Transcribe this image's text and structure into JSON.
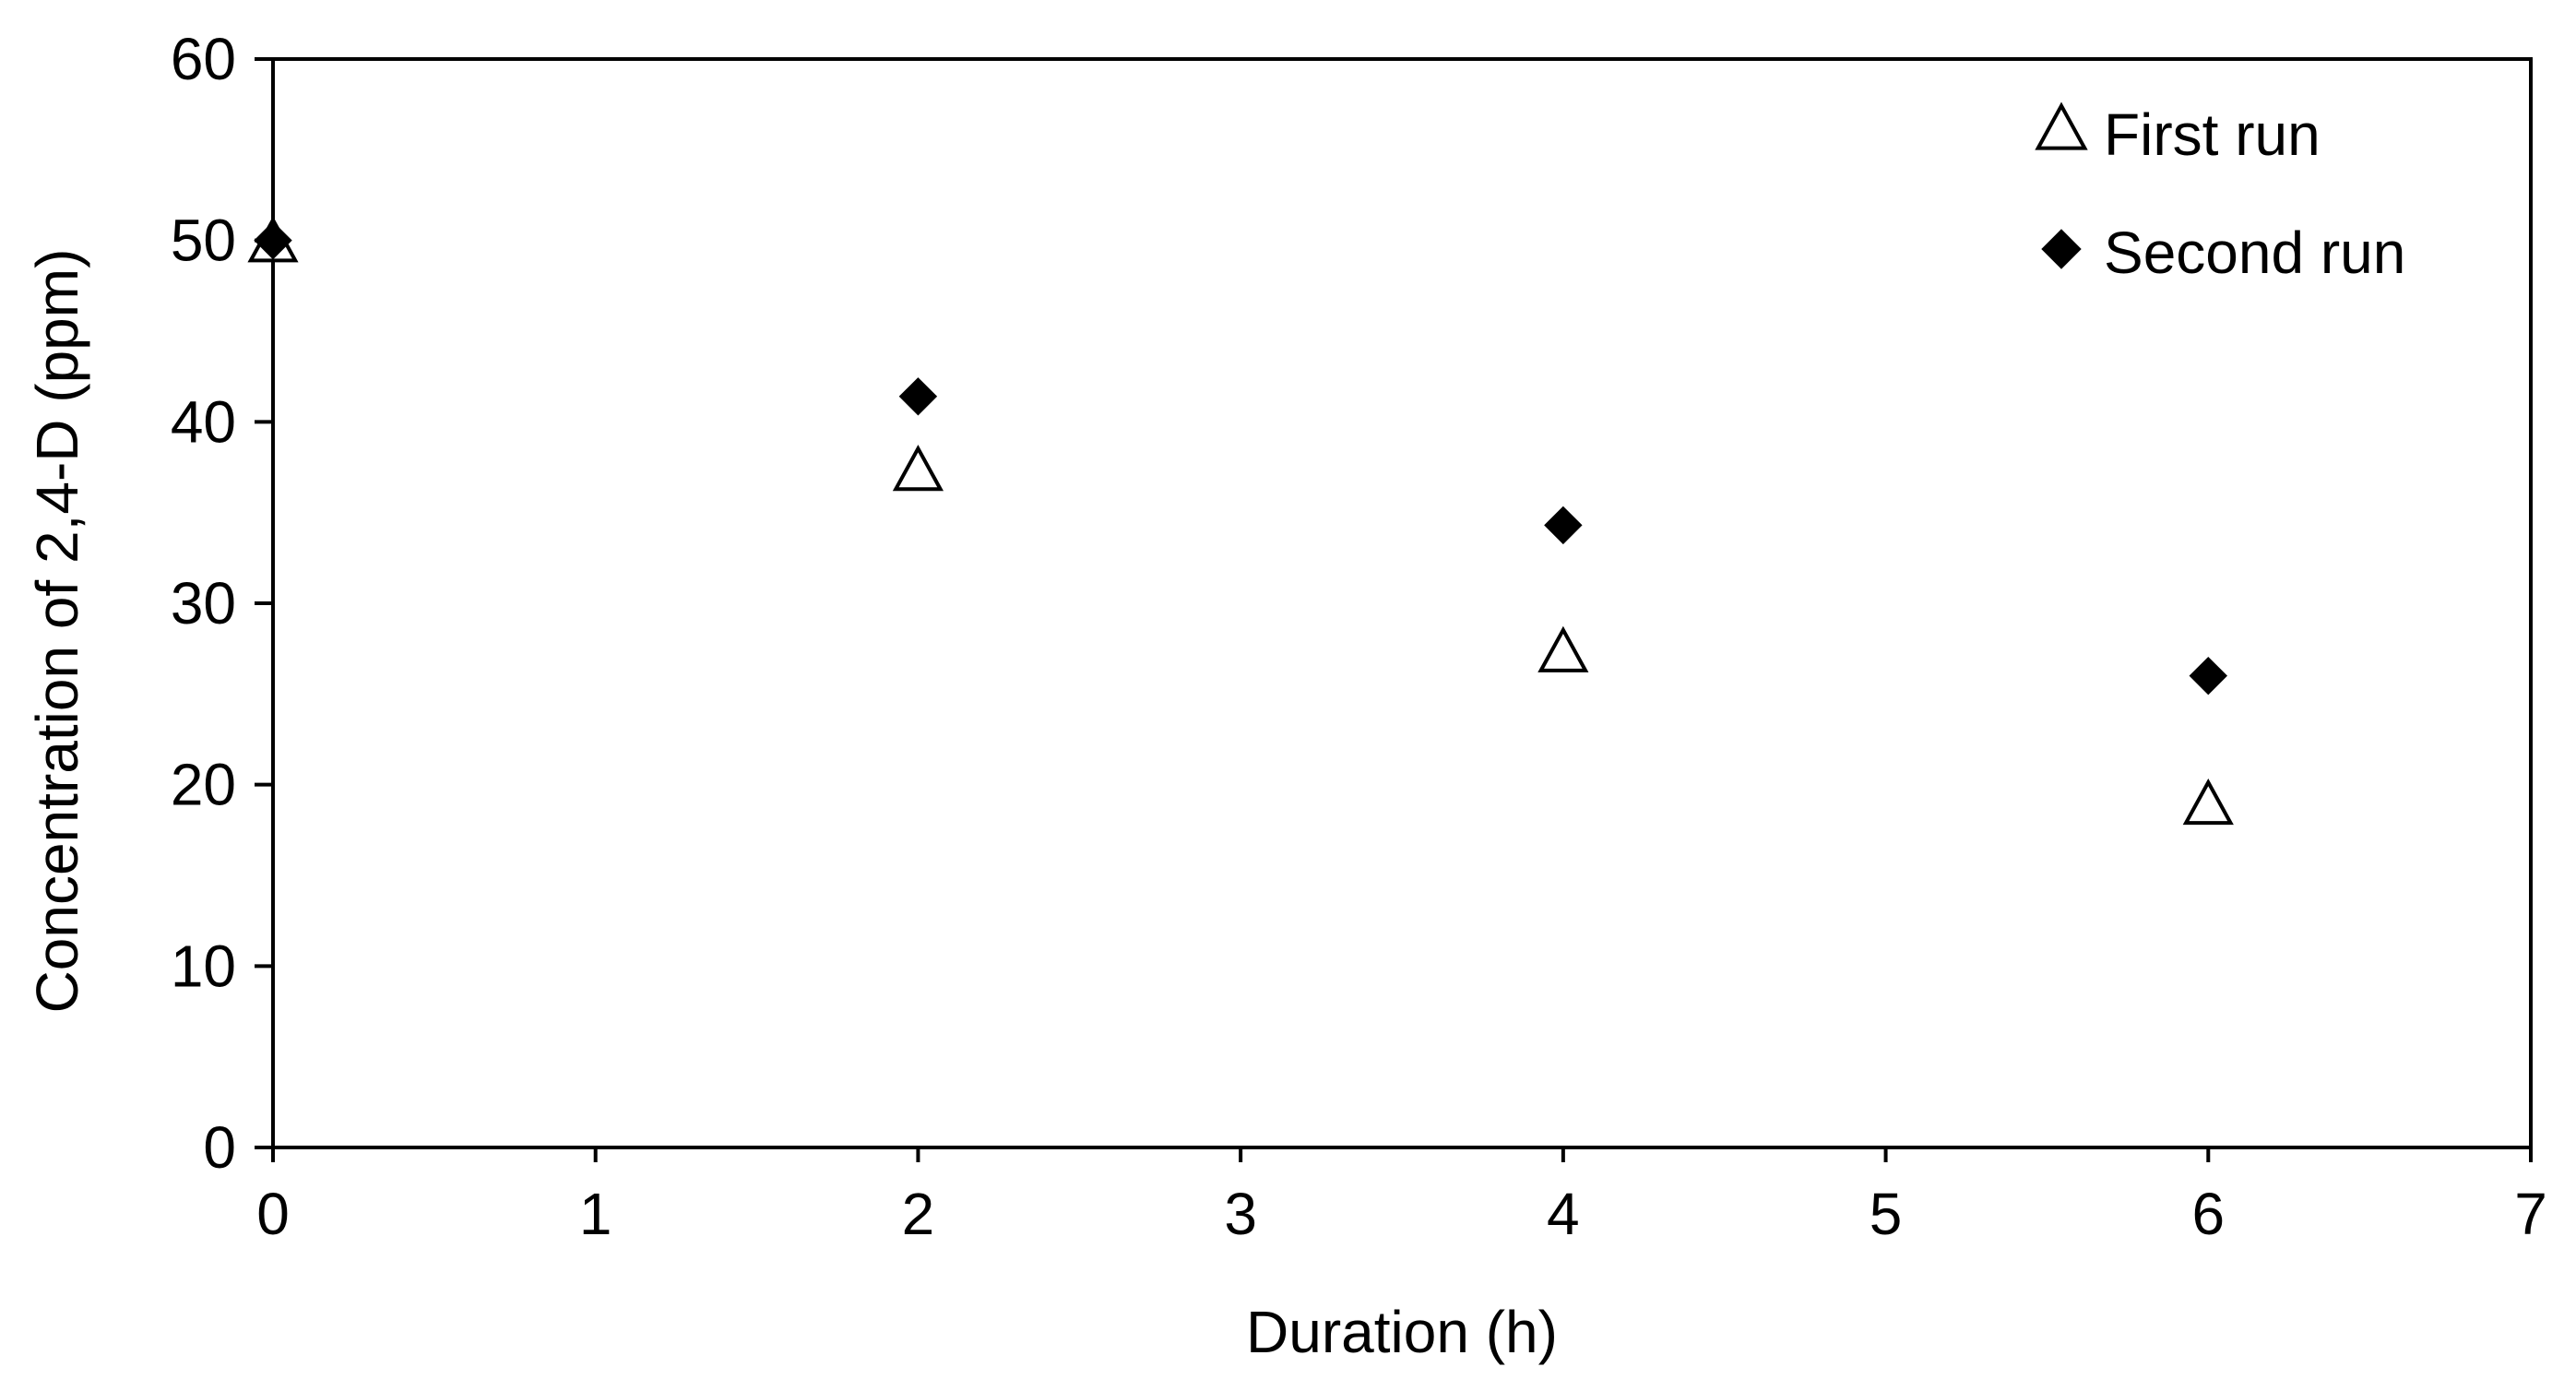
{
  "chart_data": {
    "type": "scatter",
    "title": "",
    "xlabel": "Duration (h)",
    "ylabel": "Concentration of 2,4-D (ppm)",
    "xlim": [
      0,
      7
    ],
    "ylim": [
      0,
      60
    ],
    "xticks": [
      0,
      1,
      2,
      3,
      4,
      5,
      6,
      7
    ],
    "yticks": [
      0,
      10,
      20,
      30,
      40,
      50,
      60
    ],
    "grid": false,
    "legend_position": "top-right",
    "series": [
      {
        "name": "First run",
        "marker": "open-triangle",
        "color": "#000000",
        "x": [
          0,
          2,
          4,
          6
        ],
        "y": [
          49.8,
          37.2,
          27.2,
          18.8
        ]
      },
      {
        "name": "Second run",
        "marker": "filled-diamond",
        "color": "#000000",
        "x": [
          0,
          2,
          4,
          6
        ],
        "y": [
          50.0,
          41.4,
          34.3,
          26.0
        ]
      }
    ]
  }
}
